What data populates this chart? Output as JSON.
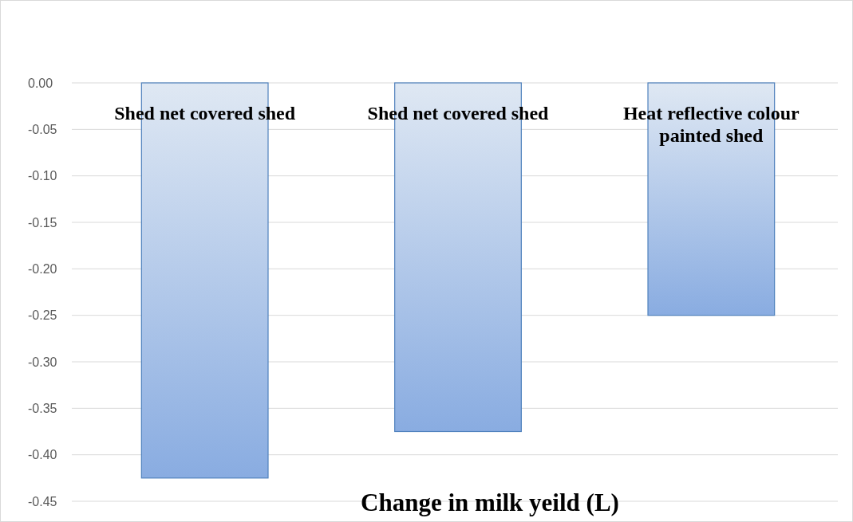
{
  "chart_data": {
    "type": "bar",
    "title": "Change in milk yeild (L)",
    "categories": [
      "Shed net covered shed",
      "Shed net covered shed",
      "Heat reflective colour painted shed"
    ],
    "values": [
      -0.425,
      -0.375,
      -0.25
    ],
    "color": "#4f81bd",
    "ylim": [
      -0.45,
      0
    ],
    "yticks": [
      {
        "value": 0,
        "label": "0.00"
      },
      {
        "value": -0.05,
        "label": "-0.05"
      },
      {
        "value": -0.1,
        "label": "-0.10"
      },
      {
        "value": -0.15,
        "label": "-0.15"
      },
      {
        "value": -0.2,
        "label": "-0.20"
      },
      {
        "value": -0.25,
        "label": "-0.25"
      },
      {
        "value": -0.3,
        "label": "-0.30"
      },
      {
        "value": -0.35,
        "label": "-0.35"
      },
      {
        "value": -0.4,
        "label": "-0.40"
      },
      {
        "value": -0.45,
        "label": "-0.45"
      }
    ],
    "grid": "y"
  }
}
